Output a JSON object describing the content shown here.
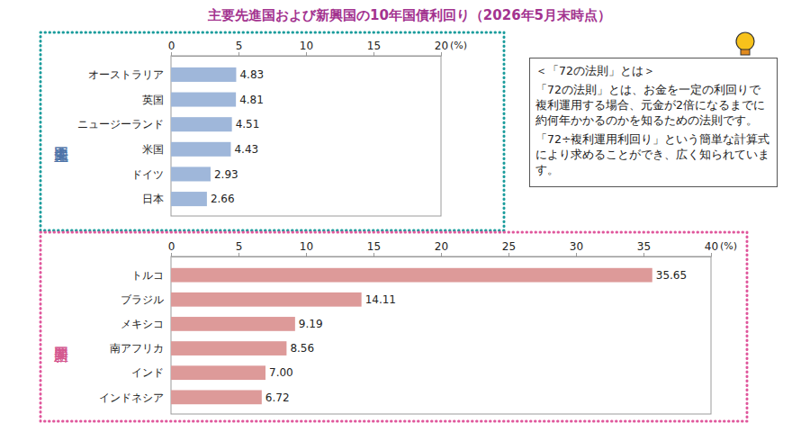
{
  "title": "主要先進国および新興国の10年国債利回り（2026年5月末時点）",
  "note": {
    "heading": "＜「72の法則」とは＞",
    "paragraphs": [
      "「72の法則」とは、お金を一定の利回りで複利運用する場合、元金が2倍になるまでに約何年かかるのかを知るための法則です。",
      "「72÷複利運用利回り」という簡単な計算式により求めることができ、広く知られています。"
    ]
  },
  "chart_data": [
    {
      "type": "bar",
      "title": "主要先進国",
      "orientation": "horizontal",
      "categories": [
        "オーストラリア",
        "英国",
        "ニュージーランド",
        "米国",
        "ドイツ",
        "日本"
      ],
      "values": [
        4.83,
        4.81,
        4.51,
        4.43,
        2.93,
        2.66
      ],
      "color": "#9fb7da",
      "xlim": [
        0,
        20
      ],
      "xticks": [
        0,
        5,
        10,
        15,
        20
      ],
      "xlabel": "(%)",
      "grid": false,
      "data_labels": true
    },
    {
      "type": "bar",
      "title": "主要新興国",
      "orientation": "horizontal",
      "categories": [
        "トルコ",
        "ブラジル",
        "メキシコ",
        "南アフリカ",
        "インド",
        "インドネシア"
      ],
      "values": [
        35.65,
        14.11,
        9.19,
        8.56,
        7.0,
        6.72
      ],
      "value_labels": [
        "35.65",
        "14.11",
        "9.19",
        "8.56",
        "7.00",
        "6.72"
      ],
      "color": "#dd9a99",
      "xlim": [
        0,
        40
      ],
      "xticks": [
        0,
        5,
        10,
        15,
        20,
        25,
        30,
        35,
        40
      ],
      "xlabel": "(%)",
      "grid": false,
      "data_labels": true
    }
  ]
}
